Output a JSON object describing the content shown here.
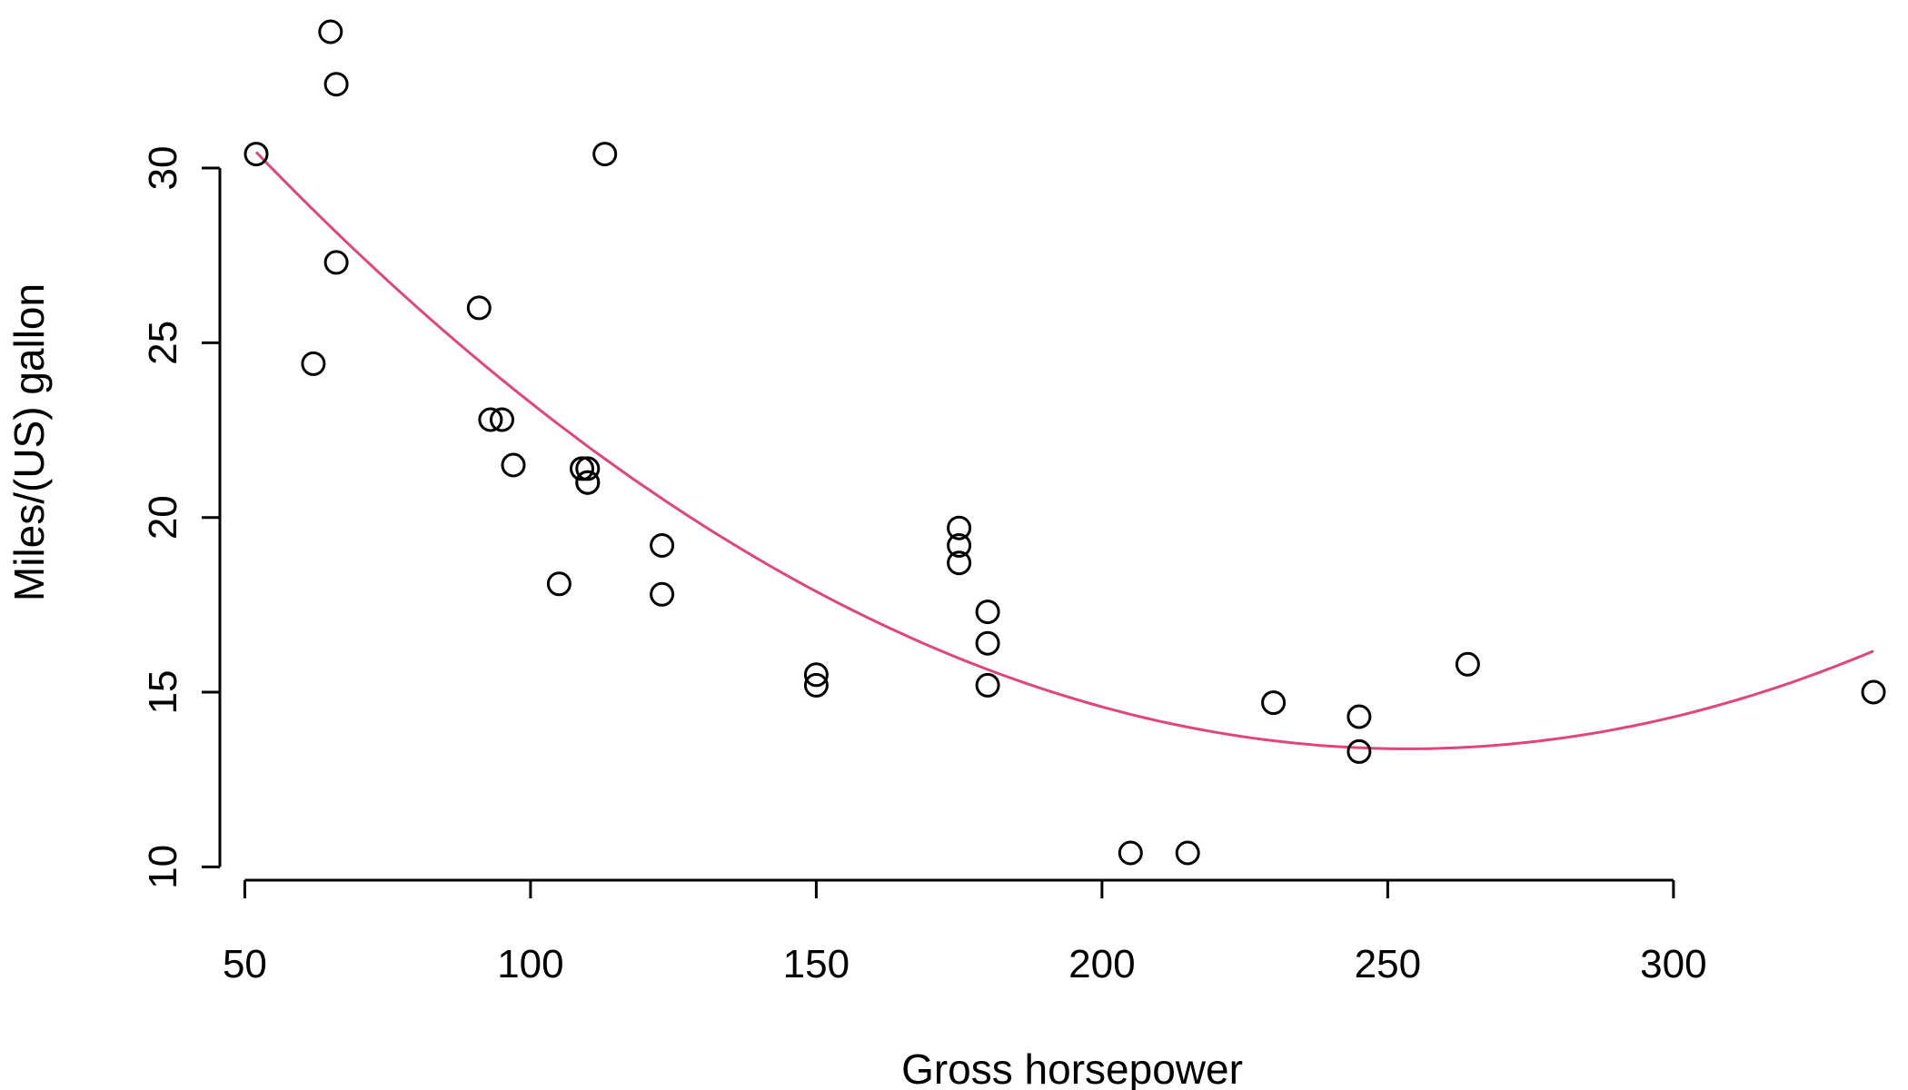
{
  "chart_data": {
    "type": "scatter",
    "xlabel": "Gross horsepower",
    "ylabel": "Miles/(US) gallon",
    "xlim": [
      52,
      335
    ],
    "ylim": [
      10.4,
      33.9
    ],
    "x_ticks": [
      50,
      100,
      150,
      200,
      250,
      300
    ],
    "x_tick_labels": [
      "50",
      "100",
      "150",
      "200",
      "250",
      "300"
    ],
    "y_ticks": [
      10,
      15,
      20,
      25,
      30
    ],
    "y_tick_labels": [
      "10",
      "15",
      "20",
      "25",
      "30"
    ],
    "grid": false,
    "points": {
      "x": [
        110,
        110,
        93,
        110,
        175,
        105,
        245,
        62,
        95,
        123,
        123,
        180,
        180,
        180,
        205,
        215,
        230,
        66,
        52,
        65,
        97,
        150,
        150,
        245,
        175,
        66,
        91,
        113,
        264,
        175,
        335,
        109
      ],
      "y": [
        21.0,
        21.0,
        22.8,
        21.4,
        18.7,
        18.1,
        14.3,
        24.4,
        22.8,
        19.2,
        17.8,
        16.4,
        17.3,
        15.2,
        10.4,
        10.4,
        14.7,
        32.4,
        30.4,
        33.9,
        21.5,
        15.5,
        15.2,
        13.3,
        19.2,
        27.3,
        26.0,
        30.4,
        15.8,
        19.7,
        15.0,
        21.4
      ]
    },
    "fit_curve": {
      "type": "quadratic",
      "coefficients": [
        40.40911,
        -0.2133,
        0.0004208
      ],
      "x_range": [
        52,
        335
      ],
      "color": "#e0457b"
    },
    "point_color": "#000000"
  }
}
